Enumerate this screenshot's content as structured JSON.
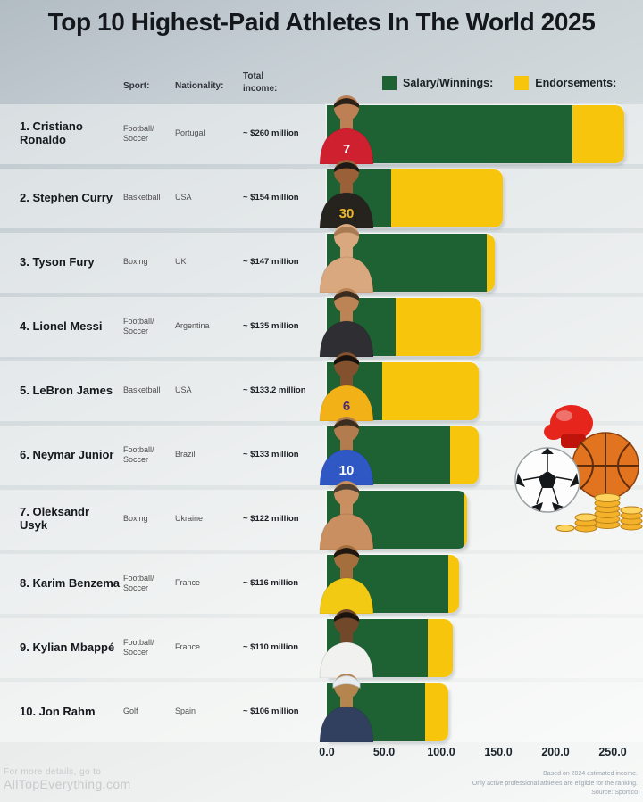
{
  "title": "Top 10 Highest-Paid Athletes In The World 2025",
  "columns": {
    "sport": "Sport:",
    "nationality": "Nationality:",
    "total_income": "Total income:"
  },
  "legend": {
    "salary": {
      "label": "Salary/Winnings:",
      "color": "#1e6234"
    },
    "endorsements": {
      "label": "Endorsements:",
      "color": "#f6c50c"
    }
  },
  "chart_data": {
    "type": "bar",
    "orientation": "horizontal",
    "stacked": true,
    "title": "Top 10 Highest-Paid Athletes In The World 2025",
    "categories": [
      "Cristiano Ronaldo",
      "Stephen Curry",
      "Tyson Fury",
      "Lionel Messi",
      "LeBron James",
      "Neymar Junior",
      "Oleksandr Usyk",
      "Karim Benzema",
      "Kylian Mbappé",
      "Jon Rahm"
    ],
    "series": [
      {
        "name": "Salary/Winnings",
        "color": "#1e6234",
        "values": [
          215,
          56,
          140,
          60,
          48.2,
          108,
          120,
          106,
          88,
          86
        ]
      },
      {
        "name": "Endorsements",
        "color": "#f6c50c",
        "values": [
          45,
          98,
          7,
          75,
          85,
          25,
          2,
          10,
          22,
          20
        ]
      }
    ],
    "totals_label": [
      "~ $260 million",
      "~ $154 million",
      "~ $147 million",
      "~ $135 million",
      "~ $133.2 million",
      "~ $133 million",
      "~ $122 million",
      "~ $116 million",
      "~ $110 million",
      "~ $106 million"
    ],
    "totals": [
      260,
      154,
      147,
      135,
      133.2,
      133,
      122,
      116,
      110,
      106
    ],
    "x_axis": {
      "ticks": [
        "0.0",
        "50.0",
        "100.0",
        "150.0",
        "200.0",
        "250.0"
      ],
      "min": 0,
      "max": 250
    },
    "legend_position": "top-right",
    "grid": false
  },
  "rows": [
    {
      "name": "1. Cristiano Ronaldo",
      "sport": "Football/ Soccer",
      "nationality": "Portugal",
      "income": "~ $260 million",
      "jersey": "#cf2030",
      "skin": "#bd8055",
      "hair": "#2b2119",
      "number": "7",
      "number_color": "#ffffff"
    },
    {
      "name": "2. Stephen Curry",
      "sport": "Basketball",
      "nationality": "USA",
      "income": "~ $154 million",
      "jersey": "#26231f",
      "skin": "#9a6038",
      "hair": "#1f1a15",
      "number": "30",
      "number_color": "#f0b52a"
    },
    {
      "name": "3. Tyson Fury",
      "sport": "Boxing",
      "nationality": "UK",
      "income": "~ $147 million",
      "jersey": "#d9a87e",
      "skin": "#d9a87e",
      "hair": "#a87b52",
      "number": "",
      "number_color": "#ffffff"
    },
    {
      "name": "4. Lionel Messi",
      "sport": "Football/ Soccer",
      "nationality": "Argentina",
      "income": "~ $135 million",
      "jersey": "#2e2e33",
      "skin": "#bc8355",
      "hair": "#3a2c20",
      "number": "",
      "number_color": "#ffffff"
    },
    {
      "name": "5. LeBron James",
      "sport": "Basketball",
      "nationality": "USA",
      "income": "~ $133.2 million",
      "jersey": "#f2b117",
      "skin": "#83512d",
      "hair": "#17120e",
      "number": "6",
      "number_color": "#4b2a7b"
    },
    {
      "name": "6. Neymar Junior",
      "sport": "Football/ Soccer",
      "nationality": "Brazil",
      "income": "~ $133 million",
      "jersey": "#2f58c4",
      "skin": "#b37c4e",
      "hair": "#3c2e1f",
      "number": "10",
      "number_color": "#ffffff"
    },
    {
      "name": "7. Oleksandr Usyk",
      "sport": "Boxing",
      "nationality": "Ukraine",
      "income": "~ $122 million",
      "jersey": "#c98f60",
      "skin": "#c98f60",
      "hair": "#50402f",
      "number": "",
      "number_color": "#ffffff"
    },
    {
      "name": "8. Karim Benzema",
      "sport": "Football/ Soccer",
      "nationality": "France",
      "income": "~ $116 million",
      "jersey": "#f2ca14",
      "skin": "#a56f3d",
      "hair": "#20180f",
      "number": "",
      "number_color": "#ffffff"
    },
    {
      "name": "9. Kylian Mbappé",
      "sport": "Football/ Soccer",
      "nationality": "France",
      "income": "~ $110 million",
      "jersey": "#f1f1ef",
      "skin": "#71482a",
      "hair": "#1c150f",
      "number": "",
      "number_color": "#ffffff"
    },
    {
      "name": "10. Jon Rahm",
      "sport": "Golf",
      "nationality": "Spain",
      "income": "~ $106 million",
      "jersey": "#30405e",
      "skin": "#b5854f",
      "hair": "#3c2b1a",
      "cap": "#e8ecef",
      "number": "",
      "number_color": "#ffffff"
    }
  ],
  "decorations": [
    "boxing-glove",
    "basketball",
    "soccer-ball",
    "gold-coins"
  ],
  "footer_left": {
    "line1": "For more details, go to",
    "line2": "AllTopEverything.com"
  },
  "footer_right": {
    "line1": "Based on 2024 estimated income.",
    "line2": "Only active professional athletes are eligible for the ranking.",
    "line3": "Source: Sportico"
  }
}
